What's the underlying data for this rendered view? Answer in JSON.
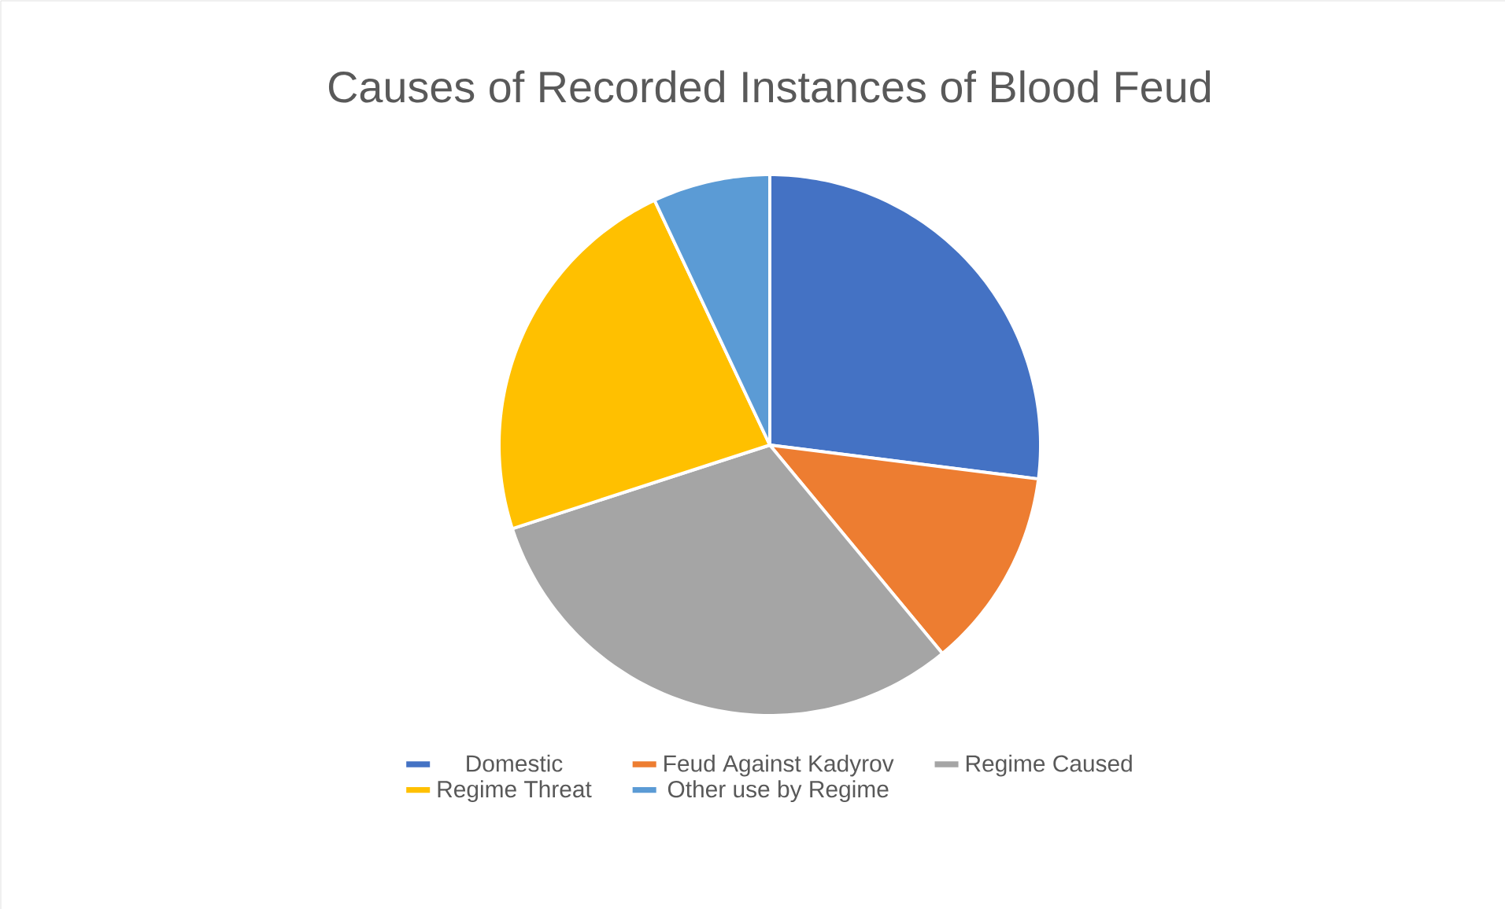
{
  "chart_data": {
    "type": "pie",
    "title": "Causes of Recorded Instances of Blood Feud",
    "categories": [
      "Domestic",
      "Feud Against Kadyrov",
      "Regime Caused",
      "Regime Threat",
      "Other use by Regime"
    ],
    "values": [
      27,
      12,
      31,
      23,
      7
    ],
    "colors": [
      "#4472c4",
      "#ed7d31",
      "#a5a5a5",
      "#ffc000",
      "#5b9bd5"
    ],
    "legend": "bottom"
  }
}
